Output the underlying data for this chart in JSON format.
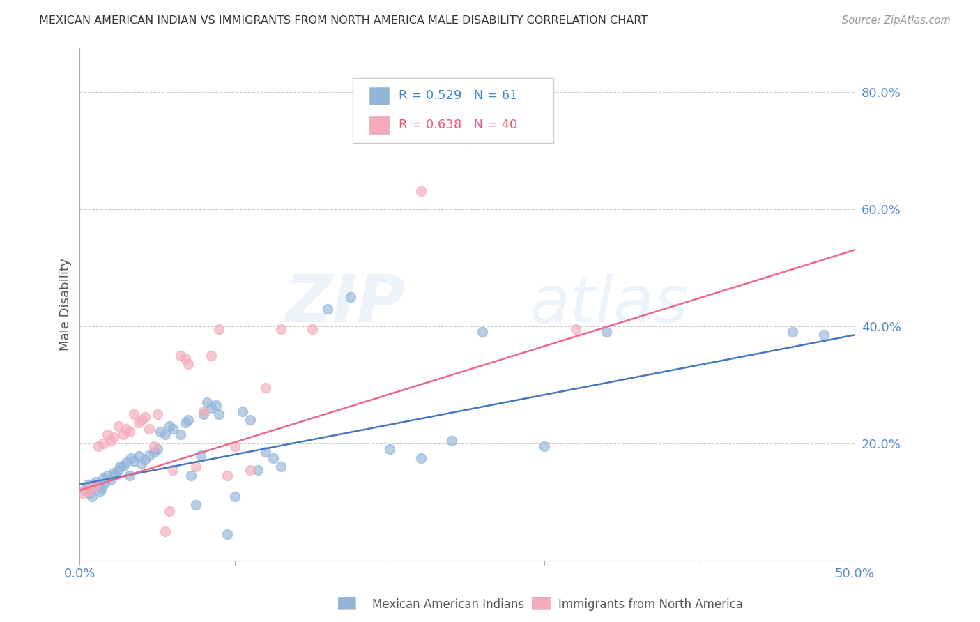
{
  "title": "MEXICAN AMERICAN INDIAN VS IMMIGRANTS FROM NORTH AMERICA MALE DISABILITY CORRELATION CHART",
  "source": "Source: ZipAtlas.com",
  "ylabel": "Male Disability",
  "y_ticks": [
    "20.0%",
    "40.0%",
    "60.0%",
    "80.0%"
  ],
  "y_tick_vals": [
    0.2,
    0.4,
    0.6,
    0.8
  ],
  "x_range": [
    0.0,
    0.5
  ],
  "y_range": [
    0.0,
    0.875
  ],
  "legend_blue_R": "0.529",
  "legend_blue_N": "61",
  "legend_pink_R": "0.638",
  "legend_pink_N": "40",
  "legend_label_blue": "Mexican American Indians",
  "legend_label_pink": "Immigrants from North America",
  "watermark": "ZIPAtlas",
  "blue_color": "#92B4D8",
  "pink_color": "#F4AABB",
  "blue_line_color": "#4477BB",
  "pink_line_color": "#EE6688",
  "blue_scatter": [
    [
      0.003,
      0.12
    ],
    [
      0.005,
      0.13
    ],
    [
      0.006,
      0.115
    ],
    [
      0.007,
      0.125
    ],
    [
      0.008,
      0.11
    ],
    [
      0.01,
      0.135
    ],
    [
      0.012,
      0.128
    ],
    [
      0.013,
      0.118
    ],
    [
      0.014,
      0.122
    ],
    [
      0.015,
      0.14
    ],
    [
      0.016,
      0.132
    ],
    [
      0.018,
      0.145
    ],
    [
      0.02,
      0.138
    ],
    [
      0.022,
      0.15
    ],
    [
      0.023,
      0.148
    ],
    [
      0.025,
      0.155
    ],
    [
      0.026,
      0.16
    ],
    [
      0.028,
      0.162
    ],
    [
      0.03,
      0.168
    ],
    [
      0.032,
      0.145
    ],
    [
      0.033,
      0.175
    ],
    [
      0.035,
      0.17
    ],
    [
      0.038,
      0.178
    ],
    [
      0.04,
      0.165
    ],
    [
      0.042,
      0.172
    ],
    [
      0.045,
      0.18
    ],
    [
      0.048,
      0.185
    ],
    [
      0.05,
      0.19
    ],
    [
      0.052,
      0.22
    ],
    [
      0.055,
      0.215
    ],
    [
      0.058,
      0.23
    ],
    [
      0.06,
      0.225
    ],
    [
      0.065,
      0.215
    ],
    [
      0.068,
      0.235
    ],
    [
      0.07,
      0.24
    ],
    [
      0.072,
      0.145
    ],
    [
      0.075,
      0.095
    ],
    [
      0.078,
      0.18
    ],
    [
      0.08,
      0.25
    ],
    [
      0.082,
      0.27
    ],
    [
      0.085,
      0.26
    ],
    [
      0.088,
      0.265
    ],
    [
      0.09,
      0.25
    ],
    [
      0.095,
      0.045
    ],
    [
      0.1,
      0.11
    ],
    [
      0.105,
      0.255
    ],
    [
      0.11,
      0.24
    ],
    [
      0.115,
      0.155
    ],
    [
      0.12,
      0.185
    ],
    [
      0.125,
      0.175
    ],
    [
      0.13,
      0.16
    ],
    [
      0.16,
      0.43
    ],
    [
      0.175,
      0.45
    ],
    [
      0.2,
      0.19
    ],
    [
      0.22,
      0.175
    ],
    [
      0.24,
      0.205
    ],
    [
      0.26,
      0.39
    ],
    [
      0.3,
      0.195
    ],
    [
      0.34,
      0.39
    ],
    [
      0.46,
      0.39
    ],
    [
      0.48,
      0.385
    ]
  ],
  "pink_scatter": [
    [
      0.002,
      0.115
    ],
    [
      0.004,
      0.12
    ],
    [
      0.006,
      0.118
    ],
    [
      0.008,
      0.125
    ],
    [
      0.01,
      0.13
    ],
    [
      0.012,
      0.195
    ],
    [
      0.015,
      0.2
    ],
    [
      0.018,
      0.215
    ],
    [
      0.02,
      0.205
    ],
    [
      0.022,
      0.21
    ],
    [
      0.025,
      0.23
    ],
    [
      0.028,
      0.215
    ],
    [
      0.03,
      0.225
    ],
    [
      0.032,
      0.22
    ],
    [
      0.035,
      0.25
    ],
    [
      0.038,
      0.235
    ],
    [
      0.04,
      0.24
    ],
    [
      0.042,
      0.245
    ],
    [
      0.045,
      0.225
    ],
    [
      0.048,
      0.195
    ],
    [
      0.05,
      0.25
    ],
    [
      0.055,
      0.05
    ],
    [
      0.058,
      0.085
    ],
    [
      0.06,
      0.155
    ],
    [
      0.065,
      0.35
    ],
    [
      0.068,
      0.345
    ],
    [
      0.07,
      0.335
    ],
    [
      0.075,
      0.16
    ],
    [
      0.08,
      0.255
    ],
    [
      0.085,
      0.35
    ],
    [
      0.09,
      0.395
    ],
    [
      0.095,
      0.145
    ],
    [
      0.1,
      0.195
    ],
    [
      0.11,
      0.155
    ],
    [
      0.12,
      0.295
    ],
    [
      0.13,
      0.395
    ],
    [
      0.15,
      0.395
    ],
    [
      0.22,
      0.63
    ],
    [
      0.25,
      0.72
    ],
    [
      0.32,
      0.395
    ]
  ],
  "blue_line": [
    [
      0.0,
      0.13
    ],
    [
      0.5,
      0.385
    ]
  ],
  "pink_line": [
    [
      0.0,
      0.12
    ],
    [
      0.5,
      0.53
    ]
  ]
}
